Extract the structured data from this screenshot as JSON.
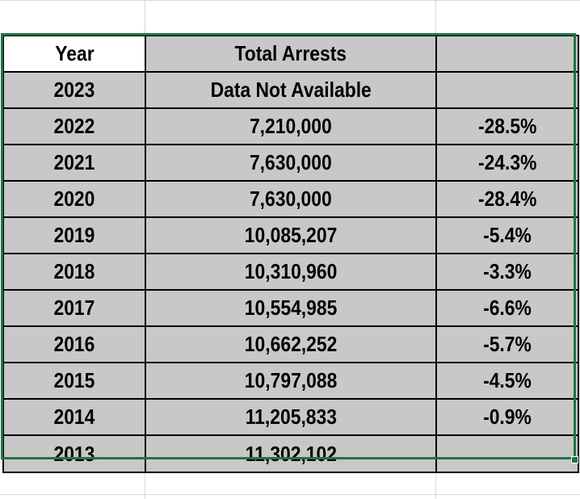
{
  "table": {
    "header": {
      "year": "Year",
      "total_arrests": "Total Arrests",
      "change": ""
    },
    "rows": [
      {
        "year": "2023",
        "total_arrests": "Data Not Available",
        "change": ""
      },
      {
        "year": "2022",
        "total_arrests": "7,210,000",
        "change": "-28.5%"
      },
      {
        "year": "2021",
        "total_arrests": "7,630,000",
        "change": "-24.3%"
      },
      {
        "year": "2020",
        "total_arrests": "7,630,000",
        "change": "-28.4%"
      },
      {
        "year": "2019",
        "total_arrests": "10,085,207",
        "change": "-5.4%"
      },
      {
        "year": "2018",
        "total_arrests": "10,310,960",
        "change": "-3.3%"
      },
      {
        "year": "2017",
        "total_arrests": "10,554,985",
        "change": "-6.6%"
      },
      {
        "year": "2016",
        "total_arrests": "10,662,252",
        "change": "-5.7%"
      },
      {
        "year": "2015",
        "total_arrests": "10,797,088",
        "change": "-4.5%"
      },
      {
        "year": "2014",
        "total_arrests": "11,205,833",
        "change": "-0.9%"
      },
      {
        "year": "2013",
        "total_arrests": "11,302,102",
        "change": ""
      }
    ]
  },
  "colors": {
    "cell_fill": "#c8c8c8",
    "header_year_fill": "#ffffff",
    "selection_border": "#217346",
    "gridline": "#d9d9d9"
  }
}
